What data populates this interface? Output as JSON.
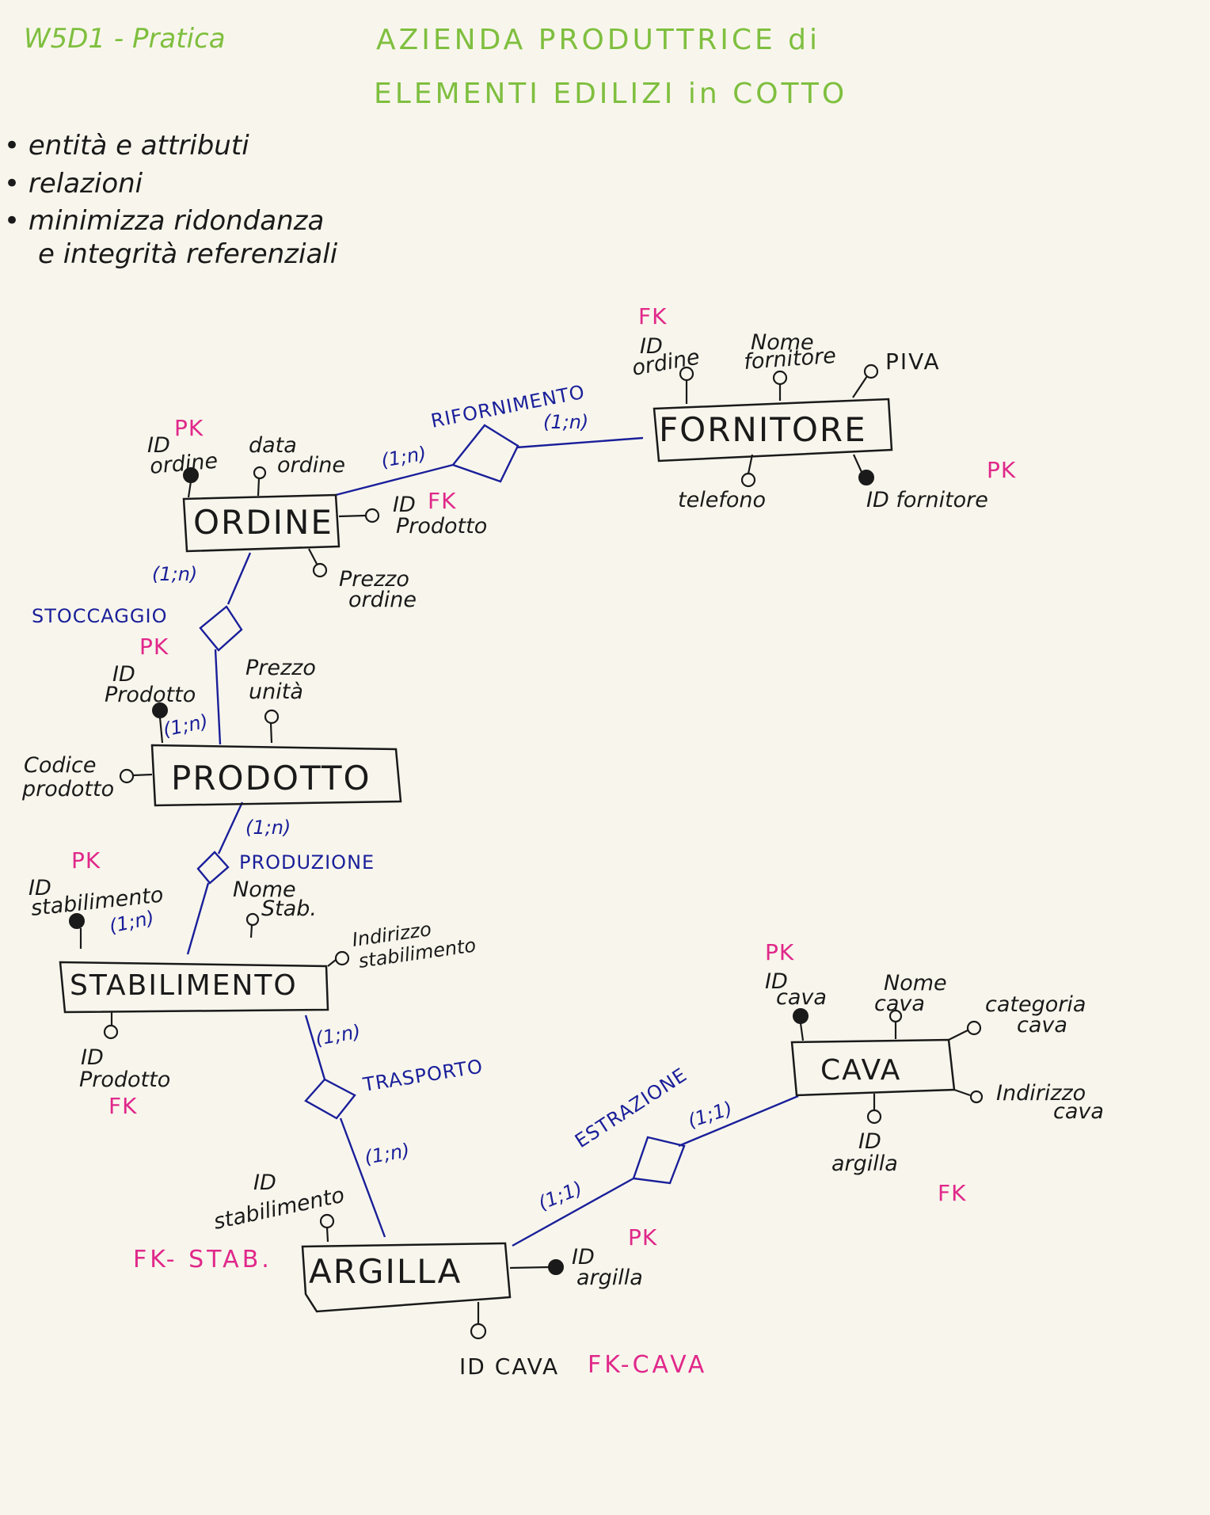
{
  "header": {
    "left": "W5D1 - Pratica",
    "title_line1": "AZIENDA PRODUTTRICE di",
    "title_line2": "ELEMENTI EDILIZI in COTTO"
  },
  "notes": [
    "• entità e attributi",
    "• relazioni",
    "• minimizza ridondanza",
    "e integrità referenziali"
  ],
  "entities": {
    "ordine": "ORDINE",
    "fornitore": "FORNITORE",
    "prodotto": "PRODOTTO",
    "stabilimento": "STABILIMENTO",
    "cava": "CAVA",
    "argilla": "ARGILLA"
  },
  "relations": {
    "rifornimento": "RIFORNIMENTO",
    "stoccaggio": "STOCCAGGIO",
    "produzione": "PRODUZIONE",
    "trasporto": "TRASPORTO",
    "estrazione": "ESTRAZIONE"
  },
  "cardinalities": {
    "rif_ordine": "(1;n)",
    "rif_fornitore": "(1;n)",
    "stocc_ordine": "(1;n)",
    "stocc_prodotto": "(1;n)",
    "prod_prodotto": "(1;n)",
    "prod_stab": "(1;n)",
    "trasp_stab": "(1;n)",
    "trasp_argilla": "(1;n)",
    "estr_argilla": "(1;1)",
    "estr_cava": "(1;1)"
  },
  "attributes": {
    "fornitore": {
      "id_ordine_1": "ID",
      "id_ordine_2": "ordine",
      "id_ordine_tag": "FK",
      "nome_1": "Nome",
      "nome_2": "fornitore",
      "piva": "PIVA",
      "telefono": "telefono",
      "id_fornitore": "ID fornitore",
      "id_fornitore_tag": "PK"
    },
    "ordine": {
      "id_ordine_1": "ID",
      "id_ordine_2": "ordine",
      "id_ordine_tag": "PK",
      "data_1": "data",
      "data_2": "ordine",
      "id_prodotto_1": "ID",
      "id_prodotto_2": "Prodotto",
      "id_prodotto_tag": "FK",
      "prezzo_1": "Prezzo",
      "prezzo_2": "ordine"
    },
    "prodotto": {
      "id_1": "ID",
      "id_2": "Prodotto",
      "id_tag": "PK",
      "prezzo_1": "Prezzo",
      "prezzo_2": "unità",
      "codice_1": "Codice",
      "codice_2": "prodotto"
    },
    "stabilimento": {
      "id_1": "ID",
      "id_2": "stabilimento",
      "id_tag": "PK",
      "nome_1": "Nome",
      "nome_2": "Stab.",
      "ind_1": "Indirizzo",
      "ind_2": "stabilimento",
      "idp_1": "ID",
      "idp_2": "Prodotto",
      "idp_tag": "FK"
    },
    "cava": {
      "id_1": "ID",
      "id_2": "cava",
      "id_tag": "PK",
      "nome_1": "Nome",
      "nome_2": "cava",
      "cat_1": "categoria",
      "cat_2": "cava",
      "ind_1": "Indirizzo",
      "ind_2": "cava",
      "ida_1": "ID",
      "ida_2": "argilla",
      "ida_tag": "FK"
    },
    "argilla": {
      "ids_1": "ID",
      "ids_2": "stabilimento",
      "ids_tag": "FK- STAB.",
      "id_1": "ID",
      "id_2": "argilla",
      "id_tag": "PK",
      "idc": "ID CAVA",
      "idc_tag": "FK-CAVA"
    }
  }
}
